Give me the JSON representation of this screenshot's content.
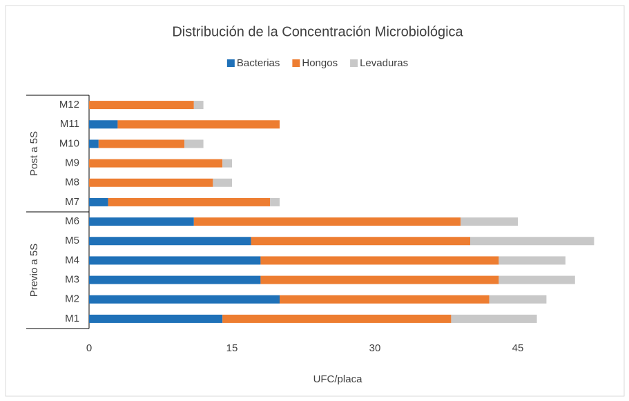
{
  "chart_data": {
    "type": "stacked_barh",
    "title": "Distribución de la Concentración Microbiológica",
    "xlabel": "UFC/placa",
    "categories": [
      "M1",
      "M2",
      "M3",
      "M4",
      "M5",
      "M6",
      "M7",
      "M8",
      "M9",
      "M10",
      "M11",
      "M12"
    ],
    "groups": [
      {
        "name": "Previo a 5S",
        "count": 6
      },
      {
        "name": "Post a 5S",
        "count": 6
      }
    ],
    "series": [
      {
        "name": "Bacterias",
        "color": "#1f71b8",
        "values": [
          14,
          20,
          18,
          18,
          17,
          11,
          2,
          0,
          0,
          1,
          3,
          0
        ]
      },
      {
        "name": "Hongos",
        "color": "#ed7d31",
        "values": [
          24,
          22,
          25,
          25,
          23,
          28,
          17,
          13,
          14,
          9,
          17,
          11
        ]
      },
      {
        "name": "Levaduras",
        "color": "#c8c8c8",
        "values": [
          9,
          6,
          8,
          7,
          13,
          6,
          1,
          2,
          1,
          2,
          0,
          1
        ]
      }
    ],
    "xlim": [
      0,
      54
    ],
    "xticks": [
      0,
      15,
      30,
      45
    ],
    "legend": "top"
  }
}
